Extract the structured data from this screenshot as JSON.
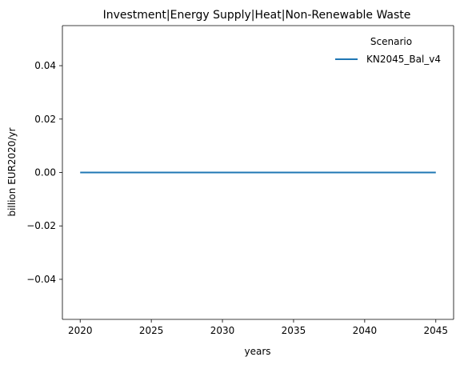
{
  "chart_data": {
    "type": "line",
    "title": "Investment|Energy Supply|Heat|Non-Renewable Waste",
    "xlabel": "years",
    "ylabel": "billion EUR2020/yr",
    "xlim": [
      2018.75,
      2046.25
    ],
    "ylim": [
      -0.055,
      0.055
    ],
    "xticks": [
      2020,
      2025,
      2030,
      2035,
      2040,
      2045
    ],
    "xtick_labels": [
      "2020",
      "2025",
      "2030",
      "2035",
      "2040",
      "2045"
    ],
    "yticks": [
      0.04,
      0.02,
      0.0,
      -0.02,
      -0.04
    ],
    "ytick_labels": [
      "0.04",
      "0.02",
      "0.00",
      "−0.02",
      "−0.04"
    ],
    "grid": false,
    "legend": {
      "title": "Scenario",
      "placement": "top-right"
    },
    "series": [
      {
        "name": "KN2045_Bal_v4",
        "color": "#1f77b4",
        "x": [
          2020,
          2025,
          2030,
          2035,
          2040,
          2045
        ],
        "y": [
          0,
          0,
          0,
          0,
          0,
          0
        ]
      }
    ]
  }
}
